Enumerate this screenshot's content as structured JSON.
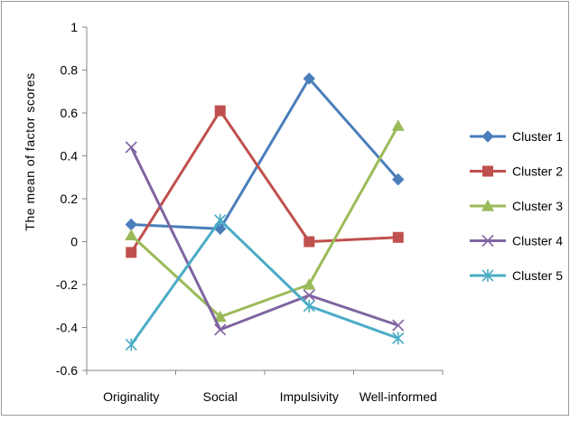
{
  "chart_data": {
    "type": "line",
    "title": "",
    "xlabel": "",
    "ylabel": "The mean of factor scores",
    "categories": [
      "Originality",
      "Social",
      "Impulsivity",
      "Well-informed"
    ],
    "ylim": [
      -0.6,
      1
    ],
    "yticks": [
      "1",
      "0.8",
      "0.6",
      "0.4",
      "0.2",
      "0",
      "-0.2",
      "-0.4",
      "-0.6"
    ],
    "ytick_values": [
      1,
      0.8,
      0.6,
      0.4,
      0.2,
      0,
      -0.2,
      -0.4,
      -0.6
    ],
    "grid": false,
    "legend_position": "right",
    "series": [
      {
        "name": "Cluster 1",
        "values": [
          0.08,
          0.06,
          0.76,
          0.29
        ],
        "color": "#4a7ebb",
        "marker": "diamond"
      },
      {
        "name": "Cluster 2",
        "values": [
          -0.05,
          0.61,
          0.0,
          0.02
        ],
        "color": "#c0504d",
        "marker": "square"
      },
      {
        "name": "Cluster 3",
        "values": [
          0.03,
          -0.35,
          -0.2,
          0.54
        ],
        "color": "#9bbb59",
        "marker": "triangle"
      },
      {
        "name": "Cluster 4",
        "values": [
          0.44,
          -0.41,
          -0.25,
          -0.39
        ],
        "color": "#8064a2",
        "marker": "x"
      },
      {
        "name": "Cluster 5",
        "values": [
          -0.48,
          0.1,
          -0.3,
          -0.45
        ],
        "color": "#4bacc6",
        "marker": "star"
      }
    ]
  }
}
